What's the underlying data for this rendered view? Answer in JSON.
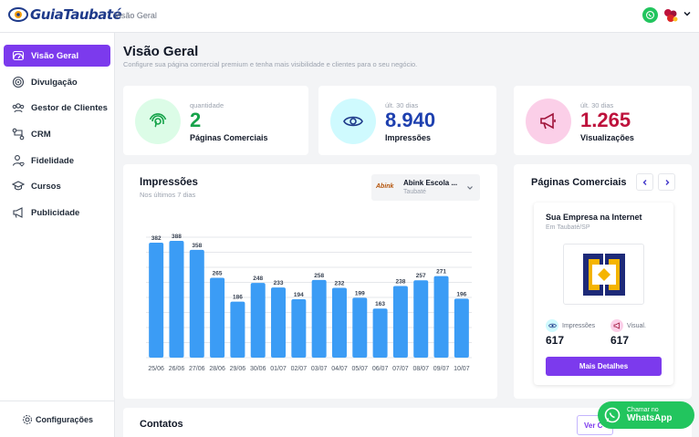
{
  "brand": {
    "name": "GuiaTaubaté"
  },
  "header": {
    "breadcrumb": "Visão Geral"
  },
  "sidebar": {
    "items": [
      {
        "label": "Visão Geral"
      },
      {
        "label": "Divulgação"
      },
      {
        "label": "Gestor de Clientes"
      },
      {
        "label": "CRM"
      },
      {
        "label": "Fidelidade"
      },
      {
        "label": "Cursos"
      },
      {
        "label": "Publicidade"
      }
    ],
    "footer": "Configurações"
  },
  "page": {
    "title": "Visão Geral",
    "subtitle": "Configure sua página comercial premium e tenha mais visibilidade e clientes para o seu negócio."
  },
  "stats": [
    {
      "caption": "quantidade",
      "value": "2",
      "label": "Páginas Comerciais",
      "color": "#16a34a"
    },
    {
      "caption": "últ. 30 dias",
      "value": "8.940",
      "label": "Impressões",
      "color": "#1e40af"
    },
    {
      "caption": "últ. 30 dias",
      "value": "1.265",
      "label": "Visualizações",
      "color": "#be123c"
    }
  ],
  "impressions": {
    "title": "Impressões",
    "subtitle": "Nos últimos 7 dias",
    "select": {
      "logo": "Abink",
      "name": "Abink Escola ...",
      "city": "Taubaté"
    }
  },
  "chart_data": {
    "type": "bar",
    "categories": [
      "25/06",
      "26/06",
      "27/06",
      "28/06",
      "29/06",
      "30/06",
      "01/07",
      "02/07",
      "03/07",
      "04/07",
      "05/07",
      "06/07",
      "07/07",
      "08/07",
      "09/07",
      "10/07"
    ],
    "values": [
      382,
      388,
      358,
      265,
      186,
      248,
      233,
      194,
      258,
      232,
      199,
      163,
      238,
      257,
      271,
      196
    ],
    "ylim": [
      0,
      400
    ],
    "grid": true,
    "color": "#3b9cf5"
  },
  "pages": {
    "title": "Páginas Comerciais",
    "card": {
      "name": "Sua Empresa na Internet",
      "city": "Em Taubaté/SP",
      "impressions_label": "Impressões",
      "impressions_value": "617",
      "views_label": "Visual.",
      "views_value": "617",
      "button": "Mais Detalhes"
    }
  },
  "contacts": {
    "title": "Contatos",
    "button": "Ver C"
  },
  "whatsapp": {
    "line1": "Chamar no",
    "line2": "WhatsApp"
  }
}
